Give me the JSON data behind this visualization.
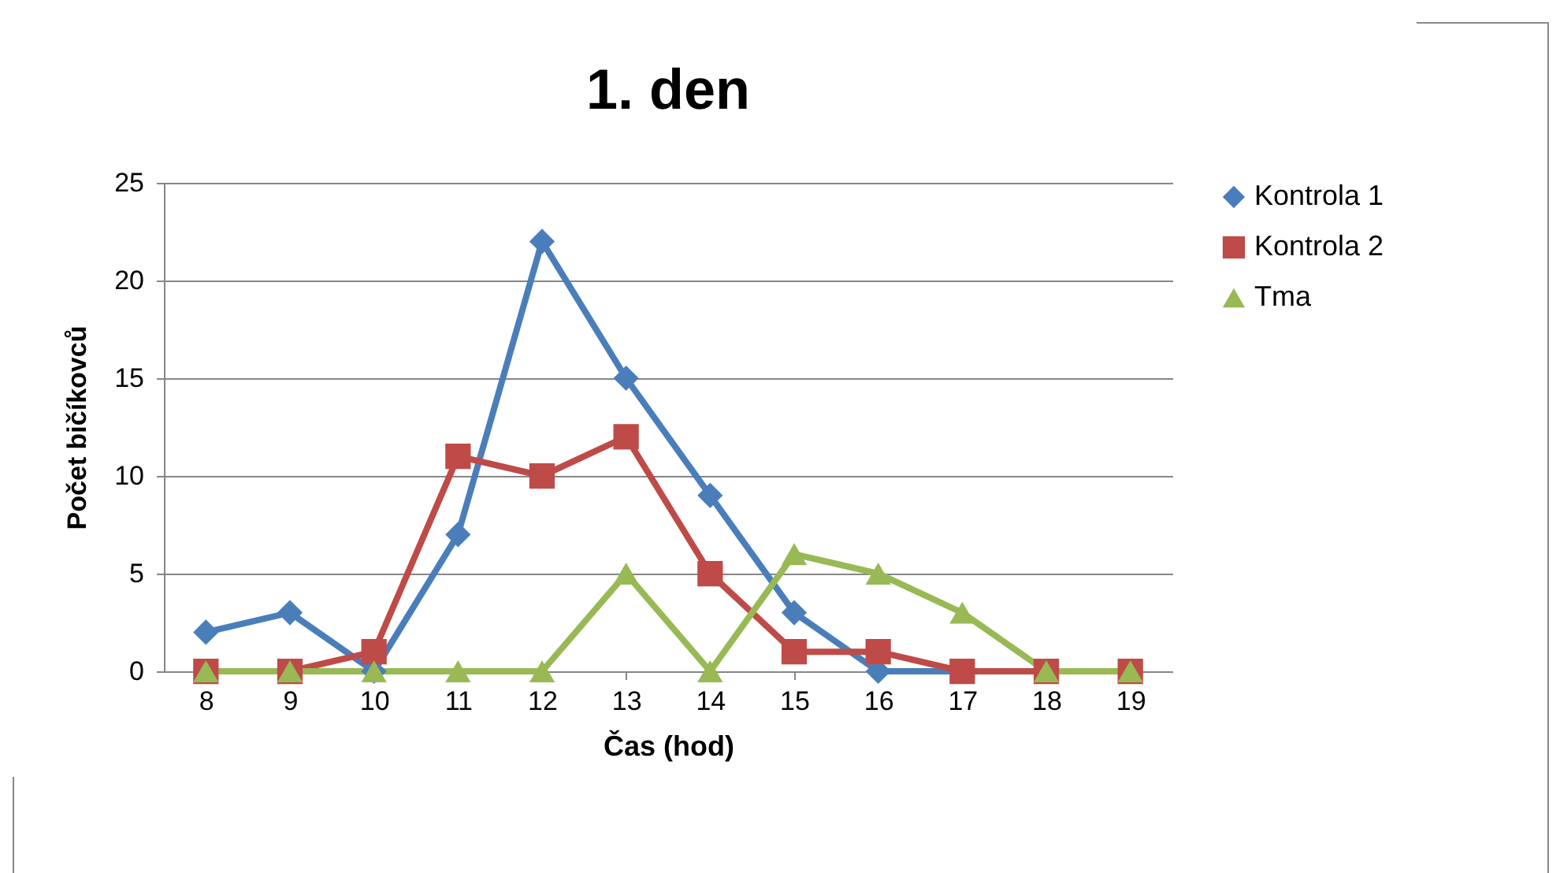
{
  "chart_data": {
    "type": "line",
    "title": "1. den",
    "xlabel": "Čas (hod)",
    "ylabel": "Počet bičíkovců",
    "categories": [
      "8",
      "9",
      "10",
      "11",
      "12",
      "13",
      "14",
      "15",
      "16",
      "17",
      "18",
      "19"
    ],
    "ylim": [
      0,
      25
    ],
    "yticks": [
      0,
      5,
      10,
      15,
      20,
      25
    ],
    "grid": "y",
    "legend": "right",
    "line_style": "solid",
    "series": [
      {
        "name": "Kontrola 1",
        "color": "#4a7ebb",
        "marker": "diamond",
        "values": [
          2,
          3,
          0,
          7,
          22,
          15,
          9,
          3,
          0,
          0,
          0,
          0
        ]
      },
      {
        "name": "Kontrola 2",
        "color": "#be4b48",
        "marker": "square",
        "values": [
          0,
          0,
          1,
          11,
          10,
          12,
          5,
          1,
          1,
          0,
          0,
          0
        ]
      },
      {
        "name": "Tma",
        "color": "#98b954",
        "marker": "triangle",
        "values": [
          0,
          0,
          0,
          0,
          0,
          5,
          0,
          6,
          5,
          3,
          0,
          0
        ]
      }
    ]
  }
}
